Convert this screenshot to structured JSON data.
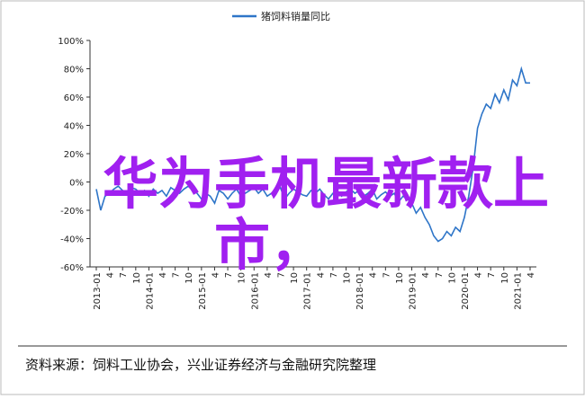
{
  "chart_data": {
    "type": "line",
    "legend": "猪饲料销量同比",
    "color": "#2e75c8",
    "categories": [
      "2013-01",
      null,
      null,
      "4",
      null,
      null,
      "7",
      null,
      null,
      "10",
      null,
      null,
      "2014-01",
      null,
      null,
      "4",
      null,
      null,
      "7",
      null,
      null,
      "10",
      null,
      null,
      "2015-01",
      null,
      null,
      "4",
      null,
      null,
      "7",
      null,
      null,
      "10",
      null,
      null,
      "2016-01",
      null,
      null,
      "4",
      null,
      null,
      "7",
      null,
      null,
      "10",
      null,
      null,
      "2017-01",
      null,
      null,
      "4",
      null,
      null,
      "7",
      null,
      null,
      "10",
      null,
      null,
      "2018-01",
      null,
      null,
      "4",
      null,
      null,
      "7",
      null,
      null,
      "10",
      null,
      null,
      "2019-01",
      null,
      null,
      "4",
      null,
      null,
      "7",
      null,
      null,
      "10",
      null,
      null,
      "2020-01",
      null,
      null,
      "4",
      null,
      null,
      "7",
      null,
      null,
      "10",
      null,
      null,
      "2021-01",
      null,
      null,
      "4"
    ],
    "values": [
      -5,
      -20,
      -10,
      -8,
      -5,
      -3,
      -6,
      -8,
      -4,
      -5,
      -8,
      -6,
      -10,
      -5,
      -8,
      -6,
      -10,
      -4,
      -6,
      -8,
      -5,
      -3,
      -6,
      -8,
      -12,
      -8,
      -10,
      -15,
      -6,
      -8,
      -12,
      -8,
      -5,
      -10,
      -8,
      -6,
      -4,
      -8,
      -5,
      -10,
      -8,
      -6,
      -4,
      -12,
      -8,
      -5,
      -7,
      -9,
      -10,
      -6,
      -8,
      -5,
      -9,
      -12,
      -8,
      -6,
      -10,
      -7,
      -5,
      -8,
      -6,
      -10,
      -8,
      -5,
      -12,
      -9,
      -7,
      -10,
      -8,
      -14,
      -10,
      -12,
      -15,
      -22,
      -18,
      -25,
      -30,
      -38,
      -42,
      -40,
      -35,
      -38,
      -32,
      -35,
      -25,
      -10,
      10,
      38,
      48,
      55,
      52,
      62,
      56,
      65,
      58,
      72,
      68,
      80,
      70,
      70
    ],
    "ylim": [
      -60,
      100
    ],
    "yticks": [
      {
        "value": -60,
        "label": "-60%"
      },
      {
        "value": -40,
        "label": "-40%"
      },
      {
        "value": -20,
        "label": "-20%"
      },
      {
        "value": 0,
        "label": "0%"
      },
      {
        "value": 20,
        "label": "20%"
      },
      {
        "value": 40,
        "label": "40%"
      },
      {
        "value": 60,
        "label": "60%"
      },
      {
        "value": 80,
        "label": "80%"
      },
      {
        "value": 100,
        "label": "100%"
      }
    ],
    "source": "资料来源：饲料工业协会，兴业证券经济与金融研究院整理"
  },
  "overlay": {
    "line1": "华为手机最新款上",
    "line2": "市，"
  }
}
